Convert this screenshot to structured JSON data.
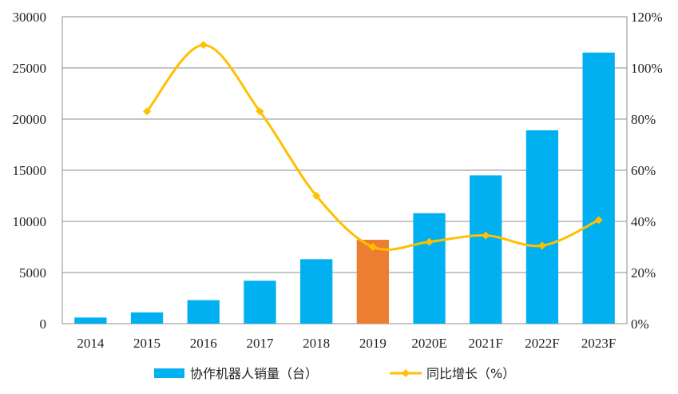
{
  "chart_data": {
    "type": "bar",
    "title": "",
    "xlabel": "",
    "ylabel": "",
    "categories": [
      "2014",
      "2015",
      "2016",
      "2017",
      "2018",
      "2019",
      "2020E",
      "2021F",
      "2022F",
      "2023F"
    ],
    "series": [
      {
        "name": "协作机器人销量（台）",
        "type": "bar",
        "axis": "left",
        "color": "#00B0F0",
        "highlight_color": "#ED7D31",
        "highlight_category": "2019",
        "values": [
          600,
          1100,
          2300,
          4200,
          6300,
          8200,
          10800,
          14500,
          18900,
          26500
        ]
      },
      {
        "name": "同比增长（%）",
        "type": "line",
        "axis": "right",
        "color": "#FFC000",
        "marker": "diamond",
        "smooth": true,
        "values": [
          null,
          83,
          109,
          83,
          50,
          30,
          32,
          34.5,
          30.5,
          40.5
        ]
      }
    ],
    "y_left": {
      "min": 0,
      "max": 30000,
      "ticks": [
        "0",
        "5000",
        "10000",
        "15000",
        "20000",
        "25000",
        "30000"
      ]
    },
    "y_right": {
      "min": 0,
      "max": 120,
      "ticks": [
        "0%",
        "20%",
        "40%",
        "60%",
        "80%",
        "100%",
        "120%"
      ]
    },
    "grid": true,
    "legend": "bottom"
  }
}
